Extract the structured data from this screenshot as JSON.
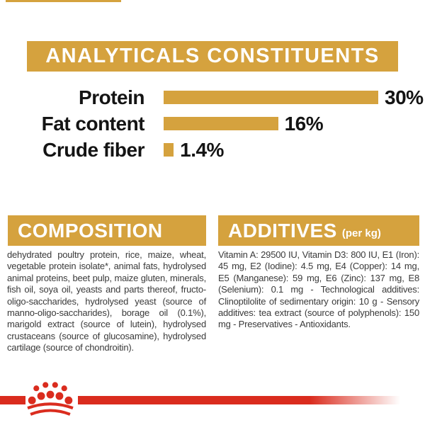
{
  "colors": {
    "gold": "#D5A23E",
    "red": "#DA2C1E",
    "heading_text": "#FFFFFF",
    "label_text": "#141414",
    "body_text": "#3A3A3A"
  },
  "analyticals": {
    "title": "ANALYTICALS CONSTITUENTS"
  },
  "chart_data": {
    "type": "bar",
    "orientation": "horizontal",
    "title": "ANALYTICALS CONSTITUENTS",
    "categories": [
      "Protein",
      "Fat content",
      "Crude fiber"
    ],
    "values": [
      30,
      16,
      1.4
    ],
    "value_labels": [
      "30%",
      "16%",
      "1.4%"
    ],
    "unit": "%",
    "xlim": [
      0,
      30
    ],
    "bar_color": "#D5A23E",
    "grid": false,
    "legend": "none"
  },
  "composition": {
    "title": "COMPOSITION",
    "body": "dehydrated poultry protein, rice, maize, wheat, vegetable protein isolate*, animal fats, hydrolysed animal proteins, beet pulp, maize gluten, minerals, fish oil, soya oil, yeasts and parts thereof, fructo-oligo-saccharides, hydrolysed yeast (source of manno-oligo-saccharides), borage oil (0.1%), marigold extract (source of lutein), hydrolysed crustaceans (source of glucosamine), hydrolysed cartilage (source of chondroitin)."
  },
  "additives": {
    "title": "ADDITIVES",
    "title_suffix": "(per kg)",
    "body": "Vitamin A: 29500 IU, Vitamin D3: 800 IU, E1 (Iron): 45 mg, E2 (Iodine): 4.5 mg, E4 (Copper): 14 mg, E5 (Manganese): 59 mg, E6 (Zinc): 137 mg, E8 (Selenium): 0.1 mg - Technological additives: Clinoptilolite of sedimentary origin: 10 g - Sensory additives: tea extract (source of polyphenols): 150 mg - Preservatives - Antioxidants."
  },
  "footer": {
    "brand_logo": "royal-canin-crown"
  }
}
